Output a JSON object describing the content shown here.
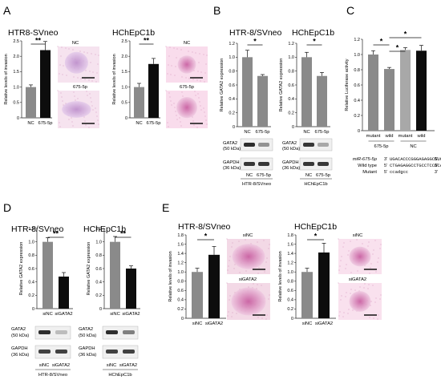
{
  "panels": {
    "A": {
      "letter": "A",
      "left": {
        "title": "HTR8-SVneo",
        "ylabel": "Relative levels of invasion",
        "yticks": [
          "0",
          "0.5",
          "1.0",
          "1.5",
          "2.0",
          "2.5"
        ],
        "categories": [
          "NC",
          "675-5p"
        ],
        "sig": "**",
        "img_top": "NC",
        "img_bottom": "675-5p"
      },
      "right": {
        "title": "HChEpC1b",
        "ylabel": "Relative levels of invasion",
        "yticks": [
          "0",
          "0.5",
          "1.0",
          "1.5",
          "2.0",
          "2.5"
        ],
        "categories": [
          "NC",
          "675-5p"
        ],
        "sig": "**",
        "img_top": "NC",
        "img_bottom": "675-5p"
      }
    },
    "B": {
      "letter": "B",
      "left": {
        "title": "HTR-8/SVneo",
        "ylabel": "Relative GATA2 expression",
        "yticks": [
          "0",
          "0.2",
          "0.4",
          "0.6",
          "0.8",
          "1.0",
          "1.2"
        ],
        "categories": [
          "NC",
          "675-5p"
        ],
        "sig": "*",
        "blot_labels": [
          "GATA2\n(50 kDa)",
          "GAPDH\n(36 kDa)"
        ],
        "lane_labels": [
          "NC",
          "675-5p"
        ],
        "cell_label": "HTR-8/SVneo"
      },
      "right": {
        "title": "HChEpC1b",
        "ylabel": "Relative GATA2 expression",
        "yticks": [
          "0",
          "0.2",
          "0.4",
          "0.6",
          "0.8",
          "1.0",
          "1.2"
        ],
        "categories": [
          "NC",
          "675-5p"
        ],
        "sig": "*",
        "blot_labels": [
          "GATA2\n(50 kDa)",
          "GAPDH\n(36 kDa)"
        ],
        "lane_labels": [
          "NC",
          "675-5p"
        ],
        "cell_label": "HChEpC1b"
      }
    },
    "C": {
      "letter": "C",
      "ylabel": "Relative Luciferase activity",
      "yticks": [
        "0",
        "0.2",
        "0.4",
        "0.6",
        "0.8",
        "1.0",
        "1.2"
      ],
      "categories": [
        "mutant",
        "wild",
        "mutant",
        "wild"
      ],
      "groups": [
        "675-5p",
        "NC"
      ],
      "sig": [
        "*",
        "*",
        "*"
      ],
      "seq_rows": [
        {
          "label": "miR-675-5p",
          "prefix": "3'",
          "seq": "UGACACCCGGGAGAGGCGUGGU",
          "suffix": "5'"
        },
        {
          "label": "Wild type",
          "prefix": "5'",
          "seq": "CTGAGAGGCCTGCCTCCGCACT",
          "suffix": "3'"
        },
        {
          "label": "Mutant",
          "prefix": "5'",
          "seq": "ccadgcc",
          "suffix": "3'"
        }
      ]
    },
    "D": {
      "letter": "D",
      "left": {
        "title": "HTR-8/SVneo",
        "ylabel": "Relative GATA2 expression",
        "yticks": [
          "0",
          "0.2",
          "0.4",
          "0.6",
          "0.8",
          "1.0",
          "1.2"
        ],
        "categories": [
          "siNC",
          "siGATA2"
        ],
        "sig": "**",
        "blot_labels": [
          "GATA2\n(50 kDa)",
          "GAPDH\n(36 kDa)"
        ],
        "lane_labels": [
          "siNC",
          "siGATA2"
        ],
        "cell_label": "HTR-8/SVneo"
      },
      "right": {
        "title": "HChEpC1b",
        "ylabel": "Relative GATA2 expression",
        "yticks": [
          "0",
          "0.2",
          "0.4",
          "0.6",
          "0.8",
          "1.0",
          "1.2"
        ],
        "categories": [
          "siNC",
          "siGATA2"
        ],
        "sig": "**",
        "blot_labels": [
          "GATA2\n(50 kDa)",
          "GAPDH\n(36 kDa)"
        ],
        "lane_labels": [
          "siNC",
          "siGATA2"
        ],
        "cell_label": "HChEpC1b"
      }
    },
    "E": {
      "letter": "E",
      "left": {
        "title": "HTR-8/SVneo",
        "ylabel": "Relative levels of invasion",
        "yticks": [
          "0",
          "0.2",
          "0.4",
          "0.6",
          "0.8",
          "1.0",
          "1.2",
          "1.4",
          "1.6",
          "1.8"
        ],
        "categories": [
          "siNC",
          "siGATA2"
        ],
        "sig": "*",
        "img_top": "siNC",
        "img_bottom": "siGATA2"
      },
      "right": {
        "title": "HChEpC1b",
        "ylabel": "Relative levels of invasion",
        "yticks": [
          "0",
          "0.2",
          "0.4",
          "0.6",
          "0.8",
          "1.0",
          "1.2",
          "1.4",
          "1.6",
          "1.8"
        ],
        "categories": [
          "siNC",
          "siGATA2"
        ],
        "sig": "*",
        "img_top": "siNC",
        "img_bottom": "siGATA2"
      }
    }
  },
  "colors": {
    "nc_bar": "#8a8a8a",
    "treat_bar": "#0d0d0d",
    "light_bar": "#a8a8a8",
    "stain": "#c4539a",
    "stain_bg": "#f3d5e8"
  },
  "chart_data": [
    {
      "type": "bar",
      "panel": "A-left",
      "categories": [
        "NC",
        "675-5p"
      ],
      "values": [
        1.0,
        2.2
      ],
      "errors": [
        0.07,
        0.28
      ],
      "ylim": [
        0,
        2.5
      ]
    },
    {
      "type": "bar",
      "panel": "A-right",
      "categories": [
        "NC",
        "675-5p"
      ],
      "values": [
        1.0,
        1.75
      ],
      "errors": [
        0.12,
        0.18
      ],
      "ylim": [
        0,
        2.5
      ]
    },
    {
      "type": "bar",
      "panel": "B-left",
      "categories": [
        "NC",
        "675-5p"
      ],
      "values": [
        1.0,
        0.73
      ],
      "errors": [
        0.1,
        0.02
      ],
      "ylim": [
        0,
        1.2
      ]
    },
    {
      "type": "bar",
      "panel": "B-right",
      "categories": [
        "NC",
        "675-5p"
      ],
      "values": [
        1.0,
        0.73
      ],
      "errors": [
        0.07,
        0.05
      ],
      "ylim": [
        0,
        1.2
      ]
    },
    {
      "type": "bar",
      "panel": "C",
      "categories": [
        "mutant",
        "wild",
        "mutant",
        "wild"
      ],
      "values": [
        1.0,
        0.81,
        1.06,
        1.05
      ],
      "errors": [
        0.05,
        0.02,
        0.03,
        0.07
      ],
      "ylim": [
        0,
        1.2
      ]
    },
    {
      "type": "bar",
      "panel": "D-left",
      "categories": [
        "siNC",
        "siGATA2"
      ],
      "values": [
        1.0,
        0.48
      ],
      "errors": [
        0.06,
        0.06
      ],
      "ylim": [
        0,
        1.2
      ]
    },
    {
      "type": "bar",
      "panel": "D-right",
      "categories": [
        "siNC",
        "siGATA2"
      ],
      "values": [
        1.0,
        0.6
      ],
      "errors": [
        0.08,
        0.04
      ],
      "ylim": [
        0,
        1.2
      ]
    },
    {
      "type": "bar",
      "panel": "E-left",
      "categories": [
        "siNC",
        "siGATA2"
      ],
      "values": [
        1.0,
        1.37
      ],
      "errors": [
        0.08,
        0.18
      ],
      "ylim": [
        0,
        1.8
      ]
    },
    {
      "type": "bar",
      "panel": "E-right",
      "categories": [
        "siNC",
        "siGATA2"
      ],
      "values": [
        1.0,
        1.42
      ],
      "errors": [
        0.08,
        0.2
      ],
      "ylim": [
        0,
        1.8
      ]
    }
  ]
}
